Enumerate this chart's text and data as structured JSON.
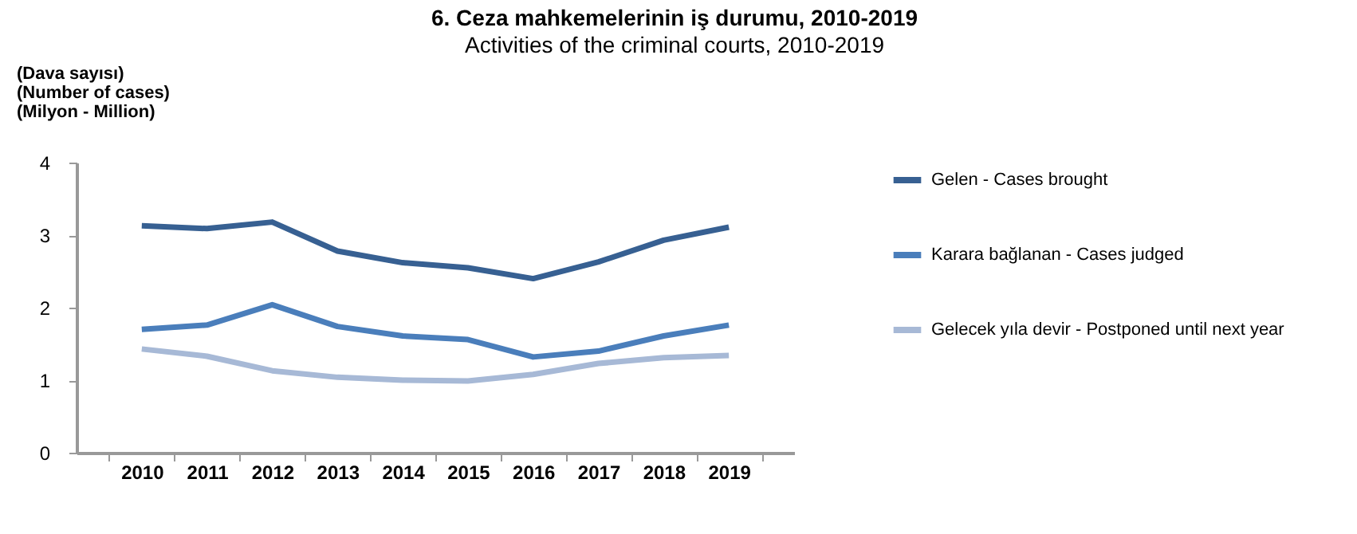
{
  "chart_data": {
    "type": "line",
    "title": "6. Ceza mahkemelerinin iş durumu, 2010-2019",
    "subtitle": "Activities of the criminal courts, 2010-2019",
    "ylabel": "(Dava sayısı)\n(Number of cases)\n\n(Milyon - Million)",
    "categories": [
      "2010",
      "2011",
      "2012",
      "2013",
      "2014",
      "2015",
      "2016",
      "2017",
      "2018",
      "2019"
    ],
    "series": [
      {
        "name": "Gelen - Cases brought",
        "color": "#376092",
        "values": [
          3.13,
          3.09,
          3.18,
          2.78,
          2.62,
          2.55,
          2.4,
          2.63,
          2.93,
          3.11
        ]
      },
      {
        "name": "Karara bağlanan - Cases judged",
        "color": "#4a7ebb",
        "values": [
          1.7,
          1.76,
          2.04,
          1.74,
          1.61,
          1.56,
          1.32,
          1.4,
          1.61,
          1.76
        ]
      },
      {
        "name": "Gelecek yıla devir - Postponed until next year",
        "color": "#a7b9d6",
        "values": [
          1.43,
          1.33,
          1.13,
          1.04,
          1.0,
          0.99,
          1.08,
          1.23,
          1.31,
          1.34
        ]
      }
    ],
    "ylim": [
      0,
      4
    ],
    "yticks": [
      0,
      1,
      2,
      3,
      4
    ],
    "grid": false,
    "legend": "right",
    "marker": "none",
    "line_style": "solid"
  }
}
